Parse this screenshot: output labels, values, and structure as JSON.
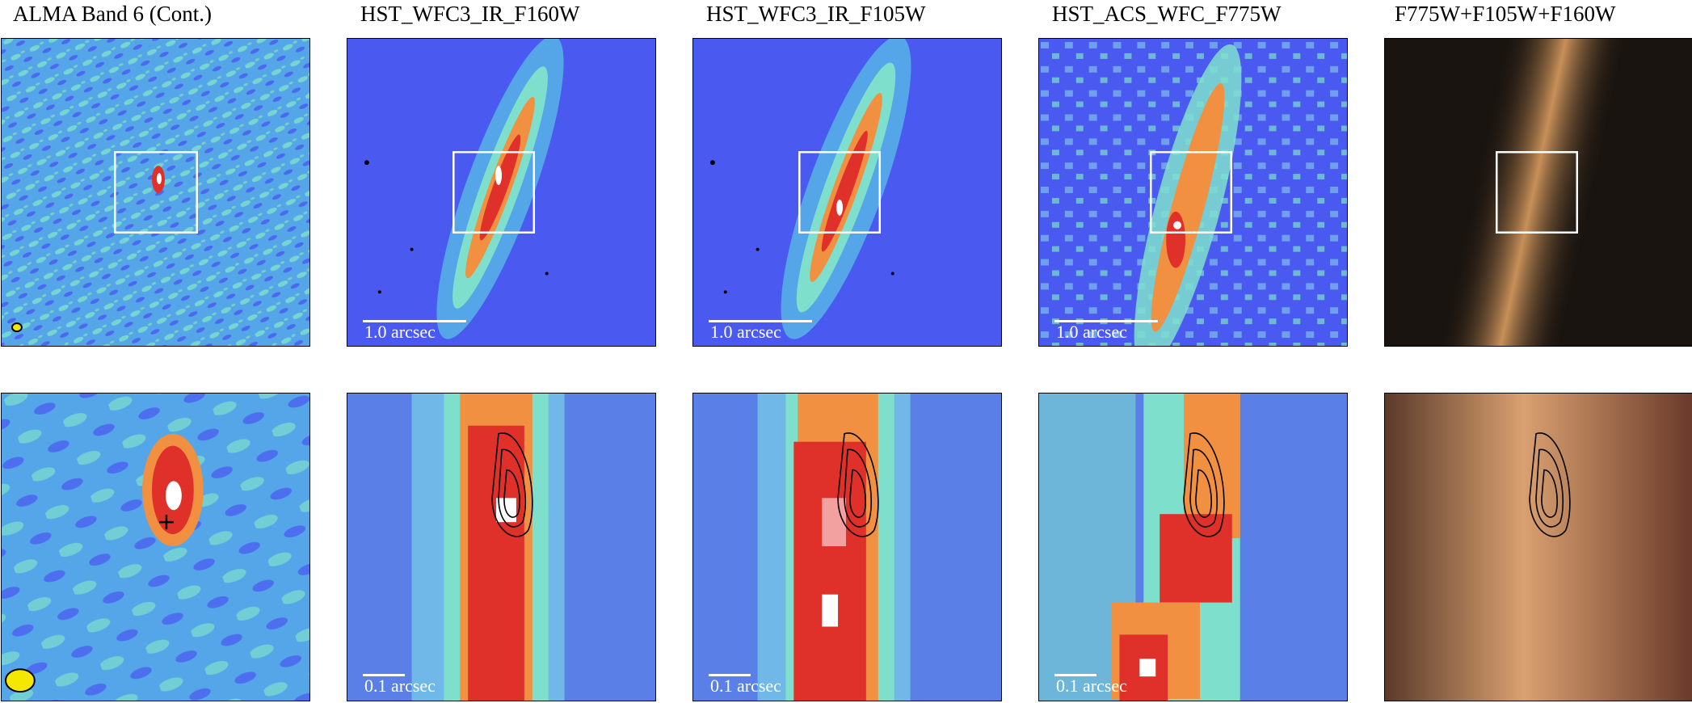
{
  "columns": [
    {
      "id": "alma",
      "title": "ALMA Band 6 (Cont.)"
    },
    {
      "id": "f160w",
      "title": "HST_WFC3_IR_F160W"
    },
    {
      "id": "f105w",
      "title": "HST_WFC3_IR_F105W"
    },
    {
      "id": "f775w",
      "title": "HST_ACS_WFC_F775W"
    },
    {
      "id": "rgb",
      "title": "F775W+F105W+F160W"
    }
  ],
  "scalebars": {
    "wide": "1.0 arcsec",
    "zoom": "0.1 arcsec"
  },
  "colors": {
    "background_blue": "#4a5af0",
    "cyan": "#6fe0c8",
    "red": "#e0302a",
    "white": "#ffffff",
    "rgb_background": "#1a1410",
    "rgb_source": "#c89058",
    "beam_fill": "#f5e800",
    "frame": "#000000"
  }
}
